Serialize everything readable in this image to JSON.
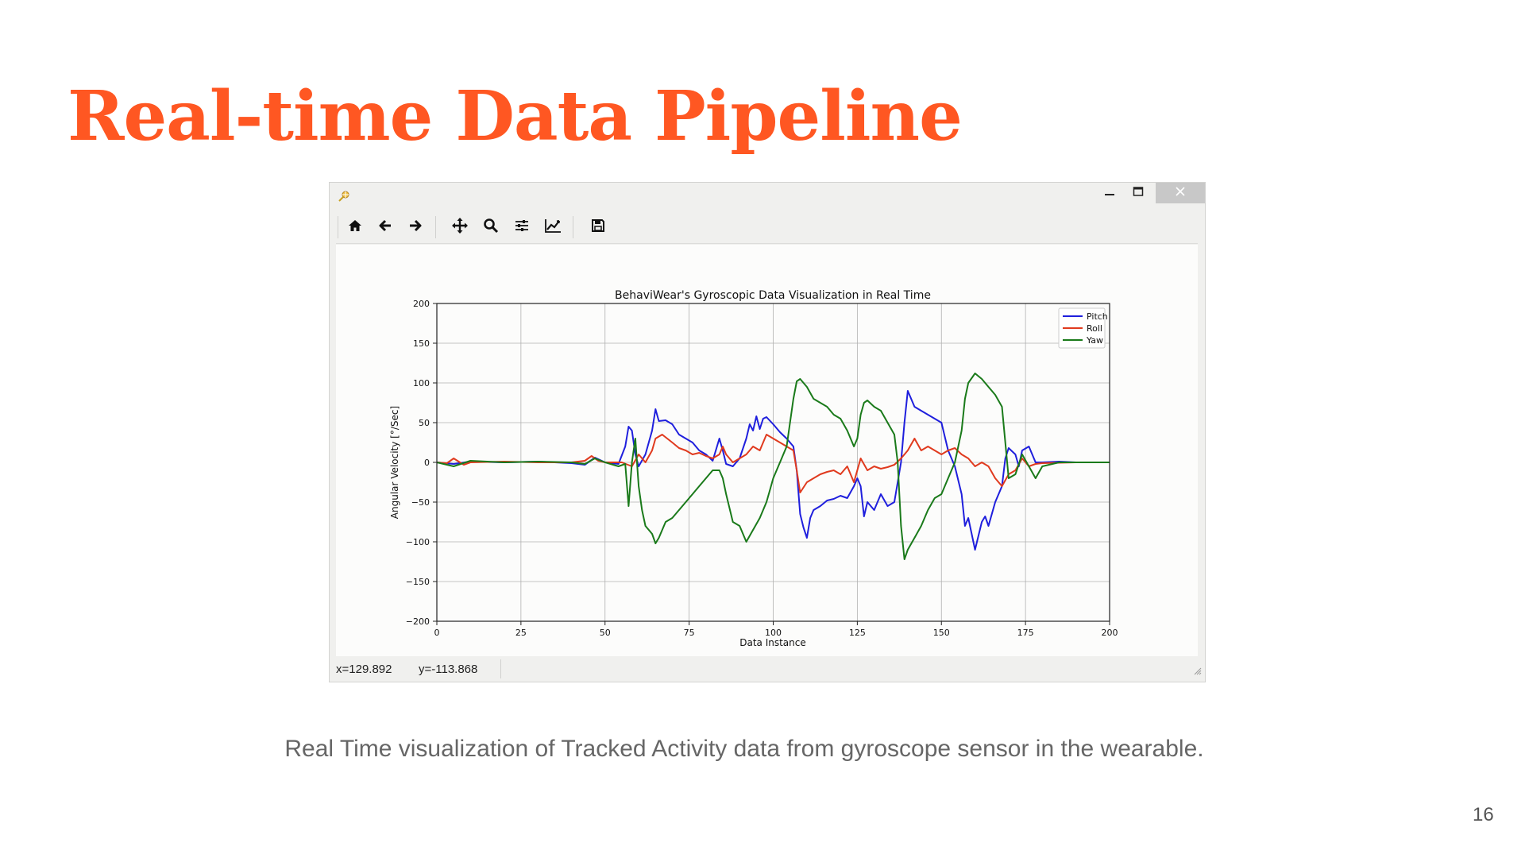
{
  "slide": {
    "title": "Real-time Data Pipeline",
    "caption": "Real Time visualization of Tracked Activity data from gyroscope sensor in the wearable.",
    "page_number": "16",
    "title_color": "#ff5722"
  },
  "window": {
    "icons": {
      "app": "figure-app-icon",
      "minimize": "minimize-icon",
      "maximize": "maximize-icon",
      "close": "close-icon"
    }
  },
  "toolbar": {
    "buttons": [
      {
        "id": "home",
        "icon": "home-icon"
      },
      {
        "id": "back",
        "icon": "arrow-left-icon"
      },
      {
        "id": "forward",
        "icon": "arrow-right-icon"
      },
      {
        "id": "pan",
        "icon": "move-icon"
      },
      {
        "id": "zoom",
        "icon": "magnifier-icon"
      },
      {
        "id": "subplots",
        "icon": "sliders-icon"
      },
      {
        "id": "axes",
        "icon": "line-chart-icon"
      },
      {
        "id": "save",
        "icon": "floppy-disk-icon"
      }
    ]
  },
  "status": {
    "x_readout": "x=129.892",
    "y_readout": "y=-113.868"
  },
  "chart_data": {
    "type": "line",
    "title": "BehaviWear's Gyroscopic Data Visualization in Real Time",
    "xlabel": "Data Instance",
    "ylabel": "Angular Velocity [°/Sec]",
    "xlim": [
      0,
      200
    ],
    "ylim": [
      -200,
      200
    ],
    "xticks": [
      0,
      25,
      50,
      75,
      100,
      125,
      150,
      175,
      200
    ],
    "yticks": [
      200,
      150,
      100,
      50,
      0,
      -50,
      -100,
      -150,
      -200
    ],
    "ytick_labels": [
      "200",
      "150",
      "100",
      "50",
      "0",
      "−50",
      "−100",
      "−150",
      "−200"
    ],
    "grid": true,
    "legend_position": "top-right",
    "series": [
      {
        "name": "Pitch",
        "color": "#1f1fdd",
        "x": [
          0,
          5,
          10,
          20,
          30,
          40,
          44,
          47,
          50,
          54,
          56,
          57,
          58,
          59,
          60,
          62,
          64,
          65,
          66,
          68,
          70,
          72,
          74,
          76,
          78,
          80,
          82,
          84,
          85,
          86,
          88,
          90,
          92,
          93,
          94,
          95,
          96,
          97,
          98,
          100,
          102,
          104,
          106,
          107,
          108,
          109,
          110,
          111,
          112,
          114,
          116,
          118,
          120,
          122,
          124,
          125,
          126,
          127,
          128,
          130,
          132,
          134,
          136,
          138,
          139,
          140,
          142,
          144,
          146,
          148,
          150,
          152,
          154,
          156,
          157,
          158,
          160,
          162,
          163,
          164,
          166,
          168,
          169,
          170,
          172,
          173,
          174,
          176,
          178,
          180,
          185,
          190,
          195,
          200
        ],
        "y": [
          0,
          -2,
          1,
          0,
          1,
          -1,
          -3,
          6,
          0,
          -2,
          20,
          45,
          40,
          10,
          -5,
          10,
          40,
          67,
          52,
          53,
          48,
          35,
          30,
          25,
          15,
          10,
          2,
          30,
          15,
          -2,
          -5,
          5,
          30,
          48,
          40,
          58,
          42,
          55,
          57,
          48,
          38,
          30,
          20,
          -10,
          -65,
          -82,
          -95,
          -70,
          -60,
          -55,
          -48,
          -46,
          -42,
          -45,
          -30,
          -20,
          -30,
          -68,
          -50,
          -60,
          -40,
          -55,
          -50,
          0,
          50,
          90,
          70,
          65,
          60,
          55,
          50,
          15,
          -5,
          -40,
          -80,
          -70,
          -110,
          -75,
          -68,
          -80,
          -50,
          -30,
          5,
          18,
          10,
          -5,
          15,
          20,
          0,
          0,
          1,
          0,
          0,
          0
        ]
      },
      {
        "name": "Roll",
        "color": "#e03a1e",
        "x": [
          0,
          3,
          5,
          8,
          10,
          20,
          30,
          40,
          44,
          46,
          48,
          50,
          55,
          58,
          60,
          62,
          64,
          65,
          67,
          70,
          72,
          74,
          76,
          78,
          80,
          82,
          84,
          85,
          86,
          88,
          90,
          92,
          94,
          96,
          98,
          100,
          102,
          104,
          106,
          107,
          108,
          110,
          112,
          114,
          116,
          118,
          120,
          122,
          124,
          126,
          128,
          130,
          132,
          134,
          136,
          138,
          139,
          140,
          142,
          144,
          146,
          148,
          150,
          152,
          154,
          156,
          158,
          160,
          162,
          164,
          166,
          168,
          170,
          172,
          174,
          176,
          178,
          180,
          190,
          200
        ],
        "y": [
          0,
          -1,
          5,
          -3,
          0,
          1,
          0,
          0,
          2,
          8,
          2,
          0,
          0,
          -5,
          10,
          0,
          15,
          30,
          35,
          25,
          18,
          15,
          10,
          12,
          8,
          5,
          10,
          20,
          10,
          0,
          5,
          10,
          20,
          15,
          35,
          30,
          25,
          20,
          15,
          -10,
          -38,
          -25,
          -20,
          -15,
          -12,
          -10,
          -15,
          -5,
          -25,
          5,
          -10,
          -5,
          -8,
          -6,
          -3,
          5,
          10,
          15,
          30,
          15,
          20,
          15,
          10,
          15,
          18,
          10,
          5,
          -5,
          0,
          -5,
          -20,
          -30,
          -15,
          -10,
          5,
          -5,
          -2,
          -1,
          0,
          0
        ]
      },
      {
        "name": "Yaw",
        "color": "#1a7a1a",
        "x": [
          0,
          5,
          10,
          20,
          30,
          40,
          44,
          47,
          50,
          54,
          56,
          57,
          58,
          59,
          60,
          61,
          62,
          64,
          65,
          66,
          68,
          70,
          72,
          74,
          76,
          78,
          80,
          82,
          84,
          85,
          86,
          88,
          90,
          92,
          94,
          96,
          98,
          99,
          100,
          102,
          104,
          106,
          107,
          108,
          110,
          112,
          114,
          116,
          118,
          120,
          122,
          124,
          125,
          126,
          127,
          128,
          130,
          132,
          134,
          136,
          137,
          138,
          139,
          140,
          142,
          144,
          146,
          148,
          150,
          152,
          154,
          156,
          157,
          158,
          160,
          162,
          164,
          166,
          168,
          170,
          172,
          174,
          176,
          178,
          180,
          185,
          190,
          195,
          200
        ],
        "y": [
          0,
          -5,
          2,
          0,
          1,
          0,
          -2,
          5,
          0,
          -5,
          -2,
          -55,
          0,
          30,
          -30,
          -60,
          -80,
          -90,
          -102,
          -95,
          -75,
          -70,
          -60,
          -50,
          -40,
          -30,
          -20,
          -10,
          -10,
          -20,
          -40,
          -75,
          -80,
          -100,
          -85,
          -70,
          -50,
          -35,
          -20,
          0,
          20,
          80,
          102,
          105,
          95,
          80,
          75,
          70,
          60,
          55,
          40,
          20,
          30,
          60,
          75,
          78,
          70,
          65,
          50,
          35,
          0,
          -80,
          -122,
          -110,
          -95,
          -80,
          -60,
          -45,
          -40,
          -20,
          0,
          40,
          80,
          100,
          112,
          105,
          95,
          85,
          70,
          -20,
          -15,
          10,
          -5,
          -20,
          -5,
          0,
          0,
          0,
          0
        ]
      }
    ]
  }
}
